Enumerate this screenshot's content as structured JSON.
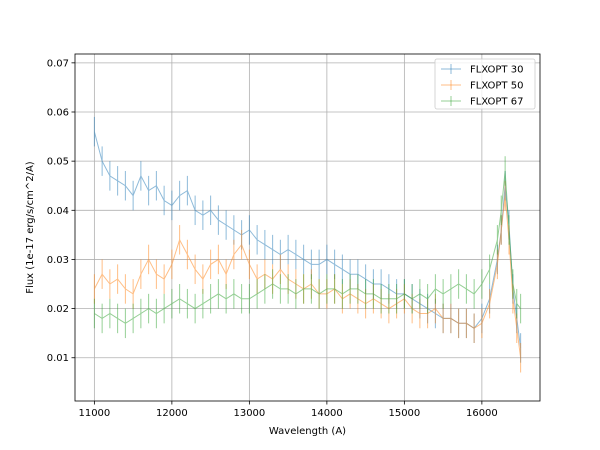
{
  "chart_data": {
    "type": "line",
    "xlabel": "Wavelength (A)",
    "ylabel": "Flux (1e-17 erg/s/cm^2/A)",
    "xlim": [
      10750,
      16750
    ],
    "ylim": [
      0.0012,
      0.0718
    ],
    "xticks": [
      11000,
      12000,
      13000,
      14000,
      15000,
      16000
    ],
    "yticks": [
      0.01,
      0.02,
      0.03,
      0.04,
      0.05,
      0.06,
      0.07
    ],
    "grid": true,
    "legend_position": "top-right",
    "error_bars": true,
    "series": [
      {
        "name": "FLXOPT 30",
        "color": "#1f77b4",
        "x": [
          11000,
          11100,
          11200,
          11300,
          11400,
          11500,
          11600,
          11700,
          11800,
          11900,
          12000,
          12100,
          12200,
          12300,
          12400,
          12500,
          12600,
          12700,
          12800,
          12900,
          13000,
          13100,
          13200,
          13300,
          13400,
          13500,
          13600,
          13700,
          13800,
          13900,
          14000,
          14100,
          14200,
          14300,
          14400,
          14500,
          14600,
          14700,
          14800,
          14900,
          15000,
          15100,
          15200,
          15300,
          15400,
          15500,
          15600,
          15700,
          15800,
          15900,
          16000,
          16100,
          16200,
          16250,
          16300,
          16350,
          16400,
          16450,
          16500
        ],
        "y": [
          0.056,
          0.05,
          0.047,
          0.046,
          0.045,
          0.043,
          0.047,
          0.044,
          0.045,
          0.042,
          0.041,
          0.043,
          0.044,
          0.04,
          0.039,
          0.04,
          0.038,
          0.037,
          0.036,
          0.035,
          0.036,
          0.034,
          0.033,
          0.032,
          0.031,
          0.032,
          0.031,
          0.03,
          0.029,
          0.029,
          0.03,
          0.029,
          0.028,
          0.027,
          0.027,
          0.026,
          0.025,
          0.025,
          0.024,
          0.023,
          0.023,
          0.022,
          0.021,
          0.02,
          0.019,
          0.018,
          0.018,
          0.017,
          0.017,
          0.016,
          0.018,
          0.022,
          0.03,
          0.036,
          0.045,
          0.037,
          0.024,
          0.018,
          0.012
        ],
        "yerr": 0.003
      },
      {
        "name": "FLXOPT 50",
        "color": "#ff7f0e",
        "x": [
          11000,
          11100,
          11200,
          11300,
          11400,
          11500,
          11600,
          11700,
          11800,
          11900,
          12000,
          12100,
          12200,
          12300,
          12400,
          12500,
          12600,
          12700,
          12800,
          12900,
          13000,
          13100,
          13200,
          13300,
          13400,
          13500,
          13600,
          13700,
          13800,
          13900,
          14000,
          14100,
          14200,
          14300,
          14400,
          14500,
          14600,
          14700,
          14800,
          14900,
          15000,
          15100,
          15200,
          15300,
          15400,
          15500,
          15600,
          15700,
          15800,
          15900,
          16000,
          16100,
          16200,
          16250,
          16300,
          16350,
          16400,
          16450,
          16500
        ],
        "y": [
          0.024,
          0.027,
          0.025,
          0.026,
          0.024,
          0.023,
          0.027,
          0.03,
          0.027,
          0.026,
          0.029,
          0.034,
          0.031,
          0.028,
          0.026,
          0.029,
          0.03,
          0.027,
          0.031,
          0.033,
          0.029,
          0.026,
          0.027,
          0.026,
          0.028,
          0.026,
          0.025,
          0.024,
          0.025,
          0.023,
          0.023,
          0.024,
          0.022,
          0.023,
          0.022,
          0.021,
          0.022,
          0.021,
          0.02,
          0.021,
          0.022,
          0.02,
          0.019,
          0.019,
          0.02,
          0.018,
          0.018,
          0.017,
          0.017,
          0.016,
          0.017,
          0.021,
          0.029,
          0.036,
          0.043,
          0.034,
          0.022,
          0.016,
          0.01
        ],
        "yerr": 0.003
      },
      {
        "name": "FLXOPT 67",
        "color": "#2ca02c",
        "x": [
          11000,
          11100,
          11200,
          11300,
          11400,
          11500,
          11600,
          11700,
          11800,
          11900,
          12000,
          12100,
          12200,
          12300,
          12400,
          12500,
          12600,
          12700,
          12800,
          12900,
          13000,
          13100,
          13200,
          13300,
          13400,
          13500,
          13600,
          13700,
          13800,
          13900,
          14000,
          14100,
          14200,
          14300,
          14400,
          14500,
          14600,
          14700,
          14800,
          14900,
          15000,
          15100,
          15200,
          15300,
          15400,
          15500,
          15600,
          15700,
          15800,
          15900,
          16000,
          16100,
          16200,
          16250,
          16300,
          16350,
          16400,
          16450,
          16500
        ],
        "y": [
          0.019,
          0.018,
          0.019,
          0.018,
          0.017,
          0.018,
          0.019,
          0.02,
          0.019,
          0.02,
          0.021,
          0.022,
          0.021,
          0.02,
          0.021,
          0.022,
          0.023,
          0.022,
          0.023,
          0.022,
          0.022,
          0.023,
          0.024,
          0.025,
          0.024,
          0.024,
          0.023,
          0.024,
          0.024,
          0.023,
          0.024,
          0.024,
          0.023,
          0.024,
          0.024,
          0.023,
          0.023,
          0.022,
          0.022,
          0.022,
          0.023,
          0.022,
          0.023,
          0.022,
          0.024,
          0.023,
          0.024,
          0.025,
          0.024,
          0.023,
          0.025,
          0.028,
          0.034,
          0.04,
          0.048,
          0.036,
          0.025,
          0.021,
          0.02
        ],
        "yerr": 0.003
      }
    ]
  }
}
